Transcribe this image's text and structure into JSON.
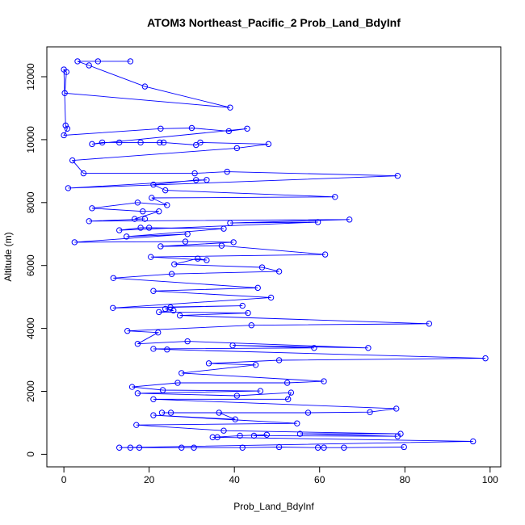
{
  "chart_data": {
    "type": "line",
    "title": "ATOM3 Northeast_Pacific_2 Prob_Land_BdyInf",
    "x_label": "Prob_Land_BdyInf",
    "y_label": "Altitude (m)",
    "color": "#0000ff",
    "marker": "circle",
    "x": [
      15.6,
      8,
      3.2,
      5.9,
      19,
      39,
      0.2,
      0.6,
      0,
      0.4,
      0.8,
      0,
      22.7,
      30,
      38.7,
      43,
      6.6,
      9,
      13,
      18,
      22.5,
      23.4,
      31,
      32,
      48,
      40.6,
      2,
      4.6,
      30.7,
      38.3,
      78.3,
      1,
      33.5,
      31,
      21,
      23.8,
      63.6,
      20.6,
      24.2,
      17.3,
      6.6,
      18.5,
      22.3,
      16.6,
      19,
      5.9,
      67,
      39,
      59.6,
      13,
      18,
      20,
      37.5,
      14.7,
      29,
      2.5,
      28.5,
      39.8,
      22.7,
      37,
      61.3,
      20.4,
      33.5,
      31.4,
      25.9,
      46.5,
      50.5,
      25.3,
      11.6,
      45.5,
      21,
      48.6,
      11.5,
      41.9,
      25,
      23.8,
      25.7,
      22.3,
      43.2,
      27.2,
      85.7,
      44,
      14.9,
      22.1,
      17.3,
      29,
      71.4,
      39.6,
      58.7,
      21,
      24.2,
      98.9,
      50.5,
      34,
      45,
      27.6,
      61,
      52.4,
      26.7,
      16,
      23.2,
      46.1,
      17.3,
      40.6,
      53.3,
      52.6,
      21,
      78,
      71.8,
      57.3,
      23,
      25.1,
      36.4,
      40.2,
      21,
      54.7,
      17,
      37.5,
      79,
      55.4,
      78.3,
      44.6,
      47.6,
      41.3,
      34.9,
      36,
      96,
      13,
      15.6,
      17.7,
      27.6,
      30.5,
      41.9,
      50.5,
      59.6,
      61,
      65.7,
      79.8
    ],
    "values": [
      12490,
      12490,
      12490,
      12360,
      11690,
      11020,
      11480,
      12150,
      12230,
      10450,
      10350,
      10140,
      10350,
      10370,
      10270,
      10350,
      9860,
      9910,
      9910,
      9910,
      9910,
      9910,
      9830,
      9910,
      9860,
      9730,
      9340,
      8930,
      8930,
      8980,
      8850,
      8460,
      8720,
      8720,
      8570,
      8390,
      8180,
      8150,
      7920,
      8000,
      7820,
      7720,
      7720,
      7480,
      7480,
      7410,
      7460,
      7350,
      7380,
      7120,
      7200,
      7200,
      7170,
      6920,
      7000,
      6740,
      6760,
      6740,
      6610,
      6630,
      6350,
      6270,
      6170,
      6220,
      6040,
      5940,
      5810,
      5730,
      5600,
      5290,
      5190,
      4980,
      4650,
      4720,
      4670,
      4620,
      4570,
      4520,
      4490,
      4410,
      4150,
      4100,
      3920,
      3870,
      3510,
      3590,
      3380,
      3460,
      3380,
      3350,
      3330,
      3050,
      2990,
      2890,
      2840,
      2580,
      2320,
      2270,
      2270,
      2140,
      2040,
      2010,
      1940,
      1860,
      1960,
      1750,
      1750,
      1450,
      1340,
      1320,
      1320,
      1320,
      1320,
      1110,
      1240,
      980,
      930,
      750,
      650,
      650,
      570,
      590,
      620,
      590,
      540,
      540,
      410,
      210,
      210,
      210,
      210,
      210,
      210,
      230,
      210,
      210,
      210,
      230
    ],
    "xlim": [
      -4,
      102.5
    ],
    "ylim": [
      -400,
      12950
    ],
    "xticks": [
      0,
      20,
      40,
      60,
      80,
      100
    ],
    "yticks": [
      0,
      2000,
      4000,
      6000,
      8000,
      10000,
      12000
    ]
  }
}
